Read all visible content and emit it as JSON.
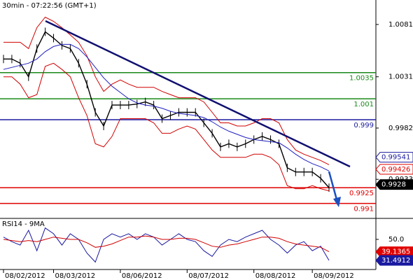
{
  "chart_data": [
    {
      "type": "line",
      "title": "30min - 07:22:56 (GMT+1)",
      "categories": [
        "08/02/2012",
        null,
        null,
        null,
        null,
        null,
        "08/03/2012",
        null,
        null,
        null,
        null,
        null,
        null,
        null,
        "08/06/2012",
        null,
        null,
        null,
        null,
        null,
        null,
        null,
        "08/07/2012",
        null,
        null,
        null,
        null,
        null,
        null,
        null,
        "08/08/2012",
        null,
        null,
        null,
        null,
        null,
        null,
        "08/09/2012",
        null,
        null
      ],
      "series": [
        {
          "color": "#000000",
          "values": [
            1.0048,
            1.0048,
            1.0044,
            1.0031,
            1.0058,
            1.0074,
            1.0068,
            1.0061,
            1.0058,
            1.0044,
            1.0024,
            0.9997,
            0.9984,
            1.0004,
            1.0004,
            1.0004,
            1.0005,
            1.0007,
            1.0004,
            0.9991,
            0.9994,
            0.9997,
            0.9997,
            0.9997,
            0.9987,
            0.9977,
            0.9964,
            0.9967,
            0.9964,
            0.9967,
            0.9971,
            0.9974,
            0.9971,
            0.9967,
            0.9944,
            0.994,
            0.994,
            0.994,
            0.9934,
            0.9925
          ]
        },
        {
          "color": "#d00000",
          "values": [
            1.0064,
            1.0064,
            1.0064,
            1.0058,
            1.0078,
            1.0088,
            1.0084,
            1.0078,
            1.0071,
            1.0064,
            1.0051,
            1.0031,
            1.0017,
            1.0024,
            1.0028,
            1.0024,
            1.0021,
            1.0021,
            1.0021,
            1.0017,
            1.0014,
            1.0011,
            1.0011,
            1.0011,
            1.0007,
            0.9997,
            0.9987,
            0.9987,
            0.9984,
            0.9984,
            0.9987,
            0.9991,
            0.9991,
            0.9987,
            0.9971,
            0.9961,
            0.9957,
            0.9954,
            0.9951,
            0.9947
          ]
        },
        {
          "color": "#d00000",
          "values": [
            1.0031,
            1.0031,
            1.0024,
            1.0011,
            1.0014,
            1.0041,
            1.0044,
            1.0038,
            1.0031,
            1.0011,
            0.9994,
            0.9967,
            0.9964,
            0.9974,
            0.9991,
            0.9991,
            0.9991,
            0.9991,
            0.9987,
            0.9977,
            0.9977,
            0.9981,
            0.9984,
            0.9981,
            0.9971,
            0.9961,
            0.9954,
            0.9954,
            0.9954,
            0.9954,
            0.9957,
            0.9957,
            0.9954,
            0.9947,
            0.9927,
            0.9924,
            0.9924,
            0.9927,
            0.9924,
            0.9922
          ]
        },
        {
          "color": "#2020c0",
          "values": [
            1.0038,
            1.004,
            1.0042,
            1.0044,
            1.0048,
            1.0055,
            1.006,
            1.0062,
            1.0062,
            1.0058,
            1.005,
            1.004,
            1.003,
            1.0022,
            1.0016,
            1.001,
            1.0006,
            1.0004,
            1.0003,
            1.0001,
            0.9998,
            0.9996,
            0.9995,
            0.9994,
            0.9992,
            0.9988,
            0.9983,
            0.9979,
            0.9976,
            0.9973,
            0.9971,
            0.997,
            0.9969,
            0.9968,
            0.9963,
            0.9957,
            0.9952,
            0.9948,
            0.9945,
            0.9941
          ]
        }
      ],
      "ylim": [
        0.9897,
        1.01044
      ],
      "yticks": [
        1.0081,
        1.0031,
        0.9982,
        0.9933
      ],
      "levels": [
        {
          "value": 1.0035,
          "color": "#1a8a1a"
        },
        {
          "value": 1.001,
          "color": "#1a8a1a"
        },
        {
          "value": 0.999,
          "color": "#1a1aa0"
        },
        {
          "value": 0.9925,
          "color": "#e00000"
        },
        {
          "value": 0.991,
          "color": "#e00000"
        }
      ],
      "price_boxes": [
        {
          "value": 0.99541,
          "color": "#1a1aa0",
          "style": "outline"
        },
        {
          "value": 0.99426,
          "color": "#e00000",
          "style": "outline"
        },
        {
          "value": 0.9928,
          "color": "#000000",
          "style": "filled"
        }
      ]
    },
    {
      "type": "line",
      "title": "RSI14 - 9MA",
      "series": [
        {
          "color": "#1a1aa0",
          "values": [
            52,
            48,
            45,
            58,
            40,
            60,
            55,
            45,
            55,
            50,
            38,
            30,
            50,
            55,
            52,
            55,
            50,
            55,
            52,
            45,
            50,
            55,
            50,
            48,
            40,
            35,
            45,
            50,
            48,
            52,
            55,
            58,
            50,
            45,
            38,
            45,
            48,
            40,
            44,
            31.4912
          ]
        },
        {
          "color": "#d00000",
          "values": [
            50,
            49,
            48,
            49,
            48,
            50,
            52,
            51,
            50,
            50,
            47,
            43,
            44,
            46,
            49,
            52,
            52,
            53,
            52,
            50,
            50,
            51,
            51,
            50,
            47,
            44,
            43,
            45,
            46,
            48,
            50,
            52,
            52,
            51,
            48,
            46,
            45,
            44,
            43,
            39.1365
          ]
        }
      ],
      "ylim": [
        23.5,
        66
      ],
      "yticks": [
        {
          "value": 50,
          "label": "50.0"
        }
      ],
      "price_boxes": [
        {
          "value": 39.1365,
          "color": "#e00000",
          "style": "filled"
        },
        {
          "value": 31.4912,
          "color": "#1a1aa0",
          "style": "filled"
        }
      ]
    }
  ]
}
